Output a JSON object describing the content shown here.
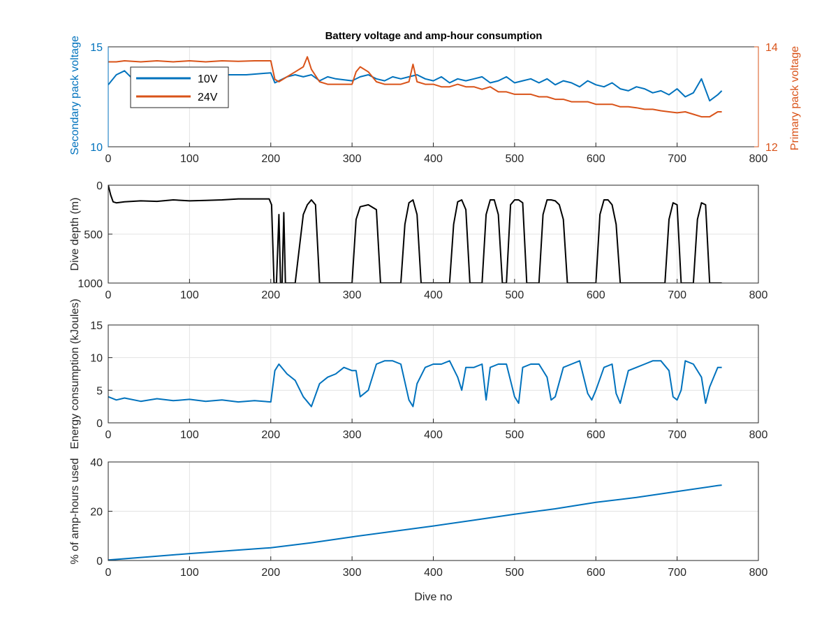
{
  "figure_title": "Battery voltage and amp-hour consumption",
  "x_label_bottom": "Dive no",
  "colors": {
    "blue": "#0072BD",
    "orange": "#D95319",
    "black": "#000000",
    "grid": "#e3e3e3",
    "axis": "#262626"
  },
  "chart_data": [
    {
      "type": "line",
      "title": "Battery voltage and amp-hour consumption",
      "xlabel": "",
      "ylabel_left": "Secondary pack voltage",
      "ylabel_right": "Primary pack voltage",
      "xlim": [
        0,
        800
      ],
      "ylim_left": [
        10,
        15
      ],
      "ylim_right": [
        12,
        14
      ],
      "xticks": [
        0,
        100,
        200,
        300,
        400,
        500,
        600,
        700,
        800
      ],
      "yticks_left": [
        10,
        15
      ],
      "yticks_right": [
        12,
        14
      ],
      "grid": true,
      "legend_position": "top-left",
      "series": [
        {
          "name": "10V",
          "axis": "left",
          "color": "#0072BD",
          "x": [
            0,
            10,
            20,
            30,
            50,
            80,
            110,
            140,
            170,
            200,
            205,
            210,
            220,
            230,
            240,
            250,
            260,
            270,
            280,
            300,
            310,
            320,
            330,
            340,
            350,
            360,
            370,
            380,
            390,
            400,
            410,
            420,
            430,
            440,
            450,
            460,
            470,
            480,
            490,
            500,
            510,
            520,
            530,
            540,
            550,
            560,
            570,
            580,
            590,
            600,
            610,
            620,
            630,
            640,
            650,
            660,
            670,
            680,
            690,
            700,
            710,
            720,
            730,
            740,
            750,
            755
          ],
          "y": [
            13.1,
            13.6,
            13.8,
            13.4,
            13.6,
            13.7,
            13.5,
            13.6,
            13.6,
            13.7,
            13.2,
            13.3,
            13.5,
            13.6,
            13.5,
            13.6,
            13.3,
            13.5,
            13.4,
            13.3,
            13.5,
            13.6,
            13.4,
            13.3,
            13.5,
            13.4,
            13.5,
            13.6,
            13.4,
            13.3,
            13.5,
            13.2,
            13.4,
            13.3,
            13.4,
            13.5,
            13.2,
            13.3,
            13.5,
            13.2,
            13.3,
            13.4,
            13.2,
            13.4,
            13.1,
            13.3,
            13.2,
            13.0,
            13.3,
            13.1,
            13.0,
            13.2,
            12.9,
            12.8,
            13.0,
            12.9,
            12.7,
            12.8,
            12.6,
            12.9,
            12.5,
            12.7,
            13.4,
            12.3,
            12.6,
            12.8
          ]
        },
        {
          "name": "24V",
          "axis": "right",
          "color": "#D95319",
          "x": [
            0,
            10,
            20,
            40,
            60,
            80,
            100,
            120,
            140,
            160,
            180,
            200,
            205,
            210,
            220,
            230,
            240,
            245,
            250,
            260,
            270,
            280,
            290,
            300,
            305,
            310,
            320,
            330,
            340,
            350,
            360,
            370,
            375,
            380,
            390,
            400,
            410,
            420,
            430,
            440,
            450,
            460,
            470,
            480,
            490,
            500,
            510,
            520,
            530,
            540,
            550,
            560,
            570,
            580,
            590,
            600,
            610,
            620,
            630,
            640,
            650,
            660,
            670,
            680,
            690,
            700,
            710,
            720,
            730,
            740,
            750,
            755
          ],
          "y": [
            13.7,
            13.7,
            13.72,
            13.7,
            13.72,
            13.7,
            13.72,
            13.7,
            13.72,
            13.71,
            13.72,
            13.72,
            13.35,
            13.3,
            13.4,
            13.5,
            13.6,
            13.8,
            13.55,
            13.3,
            13.25,
            13.25,
            13.25,
            13.25,
            13.5,
            13.6,
            13.5,
            13.3,
            13.25,
            13.25,
            13.25,
            13.3,
            13.65,
            13.3,
            13.25,
            13.25,
            13.2,
            13.2,
            13.25,
            13.2,
            13.2,
            13.15,
            13.2,
            13.1,
            13.1,
            13.05,
            13.05,
            13.05,
            13.0,
            13.0,
            12.95,
            12.95,
            12.9,
            12.9,
            12.9,
            12.85,
            12.85,
            12.85,
            12.8,
            12.8,
            12.78,
            12.75,
            12.75,
            12.72,
            12.7,
            12.68,
            12.7,
            12.65,
            12.6,
            12.6,
            12.7,
            12.7
          ]
        }
      ]
    },
    {
      "type": "line",
      "title": "",
      "xlabel": "",
      "ylabel": "Dive depth (m)",
      "xlim": [
        0,
        800
      ],
      "ylim": [
        1000,
        0
      ],
      "y_reversed": true,
      "xticks": [
        0,
        100,
        200,
        300,
        400,
        500,
        600,
        700,
        800
      ],
      "yticks": [
        0,
        500,
        1000
      ],
      "grid": true,
      "series": [
        {
          "name": "",
          "color": "#000000",
          "x": [
            0,
            3,
            6,
            10,
            20,
            40,
            60,
            80,
            100,
            120,
            140,
            160,
            180,
            198,
            201,
            204,
            207,
            210,
            212,
            214,
            216,
            218,
            220,
            230,
            240,
            245,
            250,
            255,
            260,
            270,
            280,
            300,
            305,
            310,
            320,
            330,
            335,
            340,
            360,
            365,
            370,
            375,
            380,
            385,
            400,
            420,
            425,
            430,
            435,
            440,
            445,
            450,
            455,
            460,
            465,
            470,
            475,
            480,
            485,
            490,
            495,
            500,
            505,
            510,
            515,
            520,
            530,
            535,
            540,
            545,
            550,
            555,
            560,
            565,
            570,
            575,
            580,
            600,
            605,
            610,
            615,
            620,
            625,
            630,
            640,
            660,
            680,
            685,
            690,
            695,
            700,
            705,
            710,
            720,
            725,
            730,
            735,
            740,
            745,
            750,
            755
          ],
          "y": [
            0,
            100,
            170,
            180,
            170,
            160,
            165,
            150,
            160,
            155,
            150,
            140,
            140,
            140,
            200,
            1000,
            1000,
            300,
            1000,
            1000,
            280,
            1000,
            1000,
            1000,
            300,
            200,
            150,
            200,
            1000,
            1000,
            1000,
            1000,
            350,
            220,
            200,
            250,
            1000,
            1000,
            1000,
            400,
            180,
            150,
            300,
            1000,
            1000,
            1000,
            400,
            170,
            150,
            250,
            1000,
            1000,
            1000,
            1000,
            300,
            150,
            150,
            300,
            1000,
            1000,
            200,
            150,
            150,
            180,
            1000,
            1000,
            1000,
            300,
            150,
            150,
            160,
            200,
            350,
            1000,
            1000,
            1000,
            1000,
            1000,
            300,
            150,
            150,
            200,
            400,
            1000,
            1000,
            1000,
            1000,
            1000,
            350,
            180,
            200,
            1000,
            1000,
            1000,
            350,
            180,
            200,
            1000,
            1000,
            1000,
            1000
          ]
        }
      ]
    },
    {
      "type": "line",
      "title": "",
      "xlabel": "",
      "ylabel": "Energy consumption (kJoules)",
      "xlim": [
        0,
        800
      ],
      "ylim": [
        0,
        15
      ],
      "xticks": [
        0,
        100,
        200,
        300,
        400,
        500,
        600,
        700,
        800
      ],
      "yticks": [
        0,
        5,
        10,
        15
      ],
      "grid": true,
      "series": [
        {
          "name": "",
          "color": "#0072BD",
          "x": [
            0,
            10,
            20,
            40,
            60,
            80,
            100,
            120,
            140,
            160,
            180,
            200,
            205,
            210,
            220,
            230,
            240,
            250,
            260,
            270,
            280,
            290,
            300,
            305,
            310,
            320,
            330,
            340,
            350,
            360,
            370,
            375,
            380,
            390,
            400,
            410,
            420,
            430,
            435,
            440,
            450,
            460,
            465,
            470,
            480,
            490,
            500,
            505,
            510,
            520,
            530,
            540,
            545,
            550,
            560,
            570,
            580,
            590,
            595,
            600,
            610,
            620,
            625,
            630,
            640,
            650,
            660,
            670,
            680,
            690,
            695,
            700,
            705,
            710,
            720,
            730,
            735,
            740,
            750,
            755
          ],
          "y": [
            4.0,
            3.5,
            3.8,
            3.3,
            3.7,
            3.4,
            3.6,
            3.3,
            3.5,
            3.2,
            3.4,
            3.2,
            8.0,
            9.0,
            7.5,
            6.5,
            4.0,
            2.5,
            6.0,
            7.0,
            7.5,
            8.5,
            8.0,
            8.0,
            4.0,
            5.0,
            9.0,
            9.5,
            9.5,
            9.0,
            3.5,
            2.5,
            6.0,
            8.5,
            9.0,
            9.0,
            9.5,
            7.0,
            5.0,
            8.5,
            8.5,
            9.0,
            3.5,
            8.5,
            9.0,
            9.0,
            4.0,
            3.0,
            8.5,
            9.0,
            9.0,
            7.0,
            3.5,
            4.0,
            8.5,
            9.0,
            9.5,
            4.5,
            3.5,
            5.0,
            8.5,
            9.0,
            4.5,
            3.0,
            8.0,
            8.5,
            9.0,
            9.5,
            9.5,
            8.0,
            4.0,
            3.5,
            5.0,
            9.5,
            9.0,
            7.0,
            3.0,
            5.5,
            8.5,
            8.5
          ]
        }
      ]
    },
    {
      "type": "line",
      "title": "",
      "xlabel": "Dive no",
      "ylabel": "% of amp-hours used",
      "xlim": [
        0,
        800
      ],
      "ylim": [
        0,
        40
      ],
      "xticks": [
        0,
        100,
        200,
        300,
        400,
        500,
        600,
        700,
        800
      ],
      "yticks": [
        0,
        20,
        40
      ],
      "grid": true,
      "series": [
        {
          "name": "",
          "color": "#0072BD",
          "x": [
            0,
            50,
            100,
            150,
            200,
            250,
            300,
            350,
            400,
            450,
            500,
            550,
            600,
            650,
            700,
            750,
            755
          ],
          "y": [
            0.2,
            1.5,
            2.8,
            4.0,
            5.2,
            7.2,
            9.6,
            11.8,
            14.0,
            16.4,
            18.8,
            21.0,
            23.6,
            25.6,
            28.0,
            30.4,
            30.6
          ]
        }
      ]
    }
  ]
}
